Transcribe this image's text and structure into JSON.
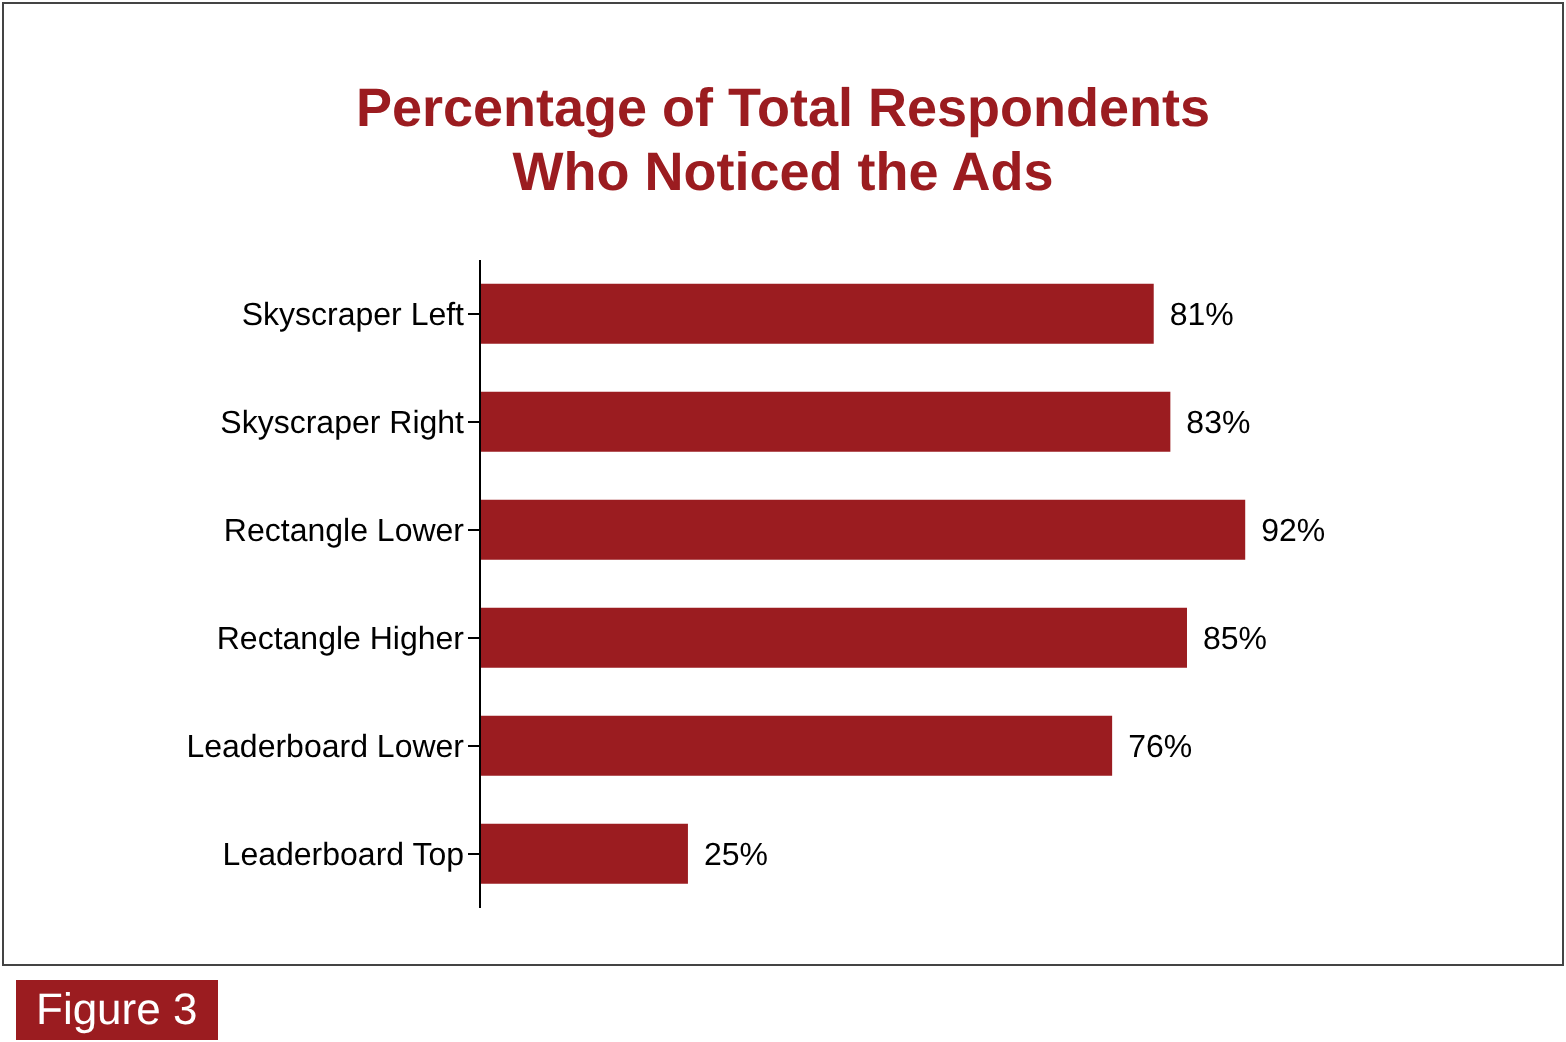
{
  "chart_data": {
    "type": "bar",
    "orientation": "horizontal",
    "title": "Percentage of Total Respondents\nWho Noticed the Ads",
    "categories": [
      "Skyscraper Left",
      "Skyscraper Right",
      "Rectangle Lower",
      "Rectangle Higher",
      "Leaderboard Lower",
      "Leaderboard Top"
    ],
    "values": [
      81,
      83,
      92,
      85,
      76,
      25
    ],
    "value_labels": [
      "81%",
      "83%",
      "92%",
      "85%",
      "76%",
      "25%"
    ],
    "color": "#9b1c20",
    "annotations": [
      "Figure 3"
    ]
  }
}
